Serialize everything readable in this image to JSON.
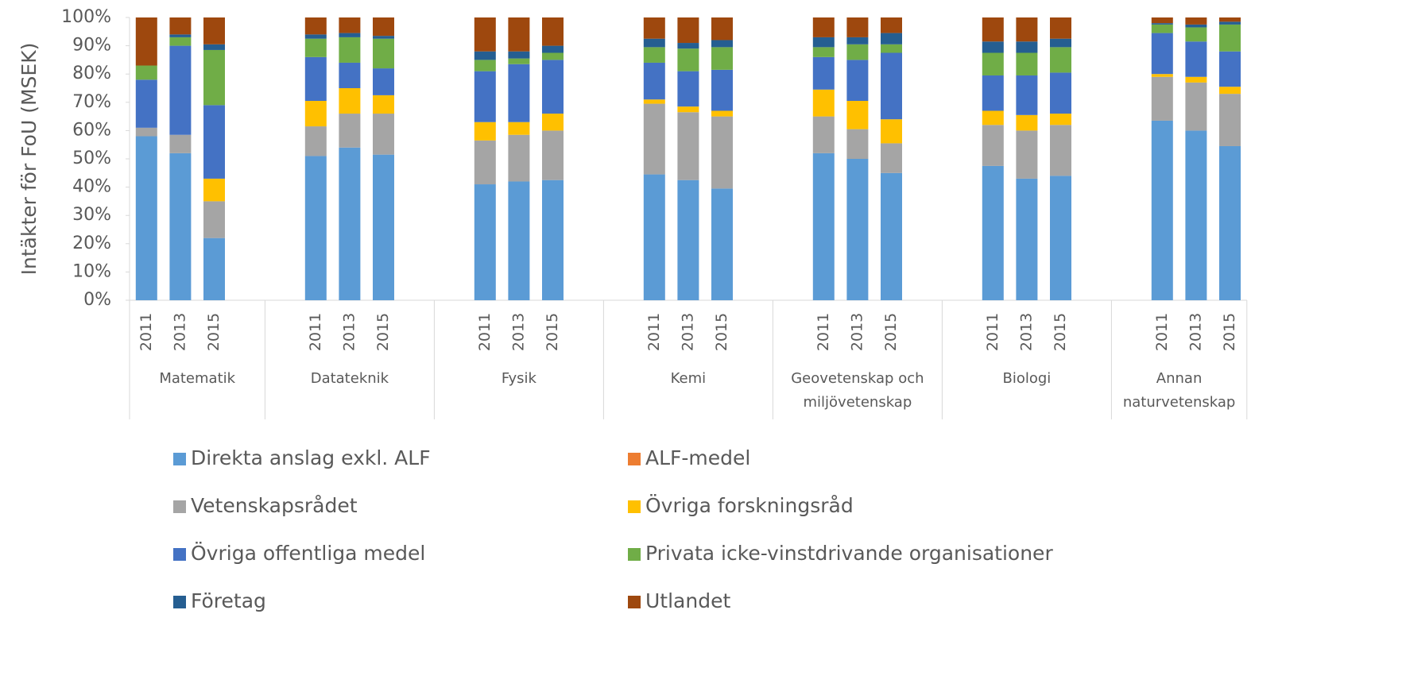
{
  "chart_data": {
    "type": "stacked_bar_percent",
    "y_label": "Intäkter för FoU (MSEK)",
    "groups": [
      "Matematik",
      "Datateknik",
      "Fysik",
      "Kemi",
      "Geovetenskap och miljövetenskap",
      "Biologi",
      "Annan naturvetenskap"
    ],
    "categories": [
      "2011",
      "2013",
      "2015",
      "2011",
      "2013",
      "2015",
      "2011",
      "2013",
      "2015",
      "2011",
      "2013",
      "2015",
      "2011",
      "2013",
      "2015",
      "2011",
      "2013",
      "2015",
      "2011",
      "2013",
      "2015"
    ],
    "ylim": [
      0,
      100
    ],
    "yticks": [
      {
        "value": 0,
        "label": "0%"
      },
      {
        "value": 10,
        "label": "10%"
      },
      {
        "value": 20,
        "label": "20%"
      },
      {
        "value": 30,
        "label": "30%"
      },
      {
        "value": 40,
        "label": "40%"
      },
      {
        "value": 50,
        "label": "50%"
      },
      {
        "value": 60,
        "label": "60%"
      },
      {
        "value": 70,
        "label": "70%"
      },
      {
        "value": 80,
        "label": "80%"
      },
      {
        "value": 90,
        "label": "90%"
      },
      {
        "value": 100,
        "label": "100%"
      }
    ],
    "series": [
      {
        "name": "Direkta anslag exkl. ALF",
        "color": "#5b9bd5",
        "values": [
          58,
          52,
          22,
          51,
          54,
          51.5,
          41,
          42,
          42.5,
          44.5,
          42.5,
          39.5,
          52,
          50,
          45,
          47.5,
          43,
          44,
          63.5,
          60,
          54.5
        ]
      },
      {
        "name": "ALF-medel",
        "color": "#ed7d31",
        "values": [
          0,
          0,
          0,
          0,
          0,
          0,
          0,
          0,
          0,
          0,
          0,
          0,
          0,
          0,
          0,
          0,
          0,
          0,
          0,
          0,
          0
        ]
      },
      {
        "name": "Vetenskapsrådet",
        "color": "#a5a5a5",
        "values": [
          3,
          6.5,
          13,
          10.5,
          12,
          14.5,
          15.5,
          16.5,
          17.5,
          25,
          24,
          25.5,
          13,
          10.5,
          10.5,
          14.5,
          17,
          18,
          15.5,
          17,
          18.5
        ]
      },
      {
        "name": "Övriga forskningsråd",
        "color": "#ffc000",
        "values": [
          0,
          0,
          8,
          9,
          9,
          6.5,
          6.5,
          4.5,
          6,
          1.5,
          2,
          2,
          9.5,
          10,
          8.5,
          5,
          5.5,
          4,
          1,
          2,
          2.5
        ]
      },
      {
        "name": "Övriga offentliga medel",
        "color": "#4472c4",
        "values": [
          17,
          31.5,
          26,
          15.5,
          9,
          9.5,
          18,
          20.5,
          19,
          13,
          12.5,
          14.5,
          11.5,
          14.5,
          23.5,
          12.5,
          14,
          14.5,
          14.5,
          12.5,
          12.5
        ]
      },
      {
        "name": "Privata icke-vinstdrivande organisationer",
        "color": "#70ad47",
        "values": [
          5,
          3,
          19.5,
          6.5,
          9,
          10.5,
          4,
          2,
          2.5,
          5.5,
          8,
          8,
          3.5,
          5.5,
          3,
          8,
          8,
          9,
          3,
          5,
          9.5
        ]
      },
      {
        "name": "Företag",
        "color": "#255e91",
        "values": [
          0,
          1,
          2,
          1.5,
          1.5,
          1,
          3,
          2.5,
          2.5,
          3,
          2,
          2.5,
          3.5,
          2.5,
          4,
          4,
          4,
          3,
          0.5,
          1,
          1
        ]
      },
      {
        "name": "Utlandet",
        "color": "#9e480e",
        "values": [
          17,
          6,
          9.5,
          6,
          5.5,
          6.5,
          12,
          12,
          10,
          7.5,
          9,
          8,
          7,
          7,
          5.5,
          8.5,
          8.5,
          7.5,
          2,
          2.5,
          1.5
        ]
      }
    ]
  }
}
